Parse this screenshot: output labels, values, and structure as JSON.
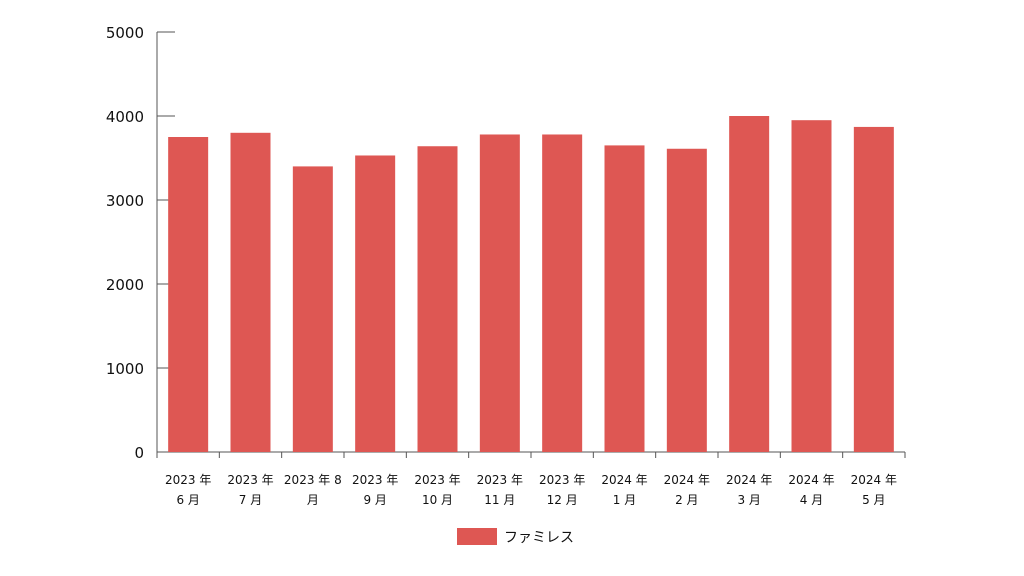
{
  "chart_data": {
    "type": "bar",
    "categories": [
      [
        "2023 年",
        "6 月"
      ],
      [
        "2023 年",
        "7 月"
      ],
      [
        "2023 年 8",
        "月"
      ],
      [
        "2023 年",
        "9 月"
      ],
      [
        "2023 年",
        "10 月"
      ],
      [
        "2023 年",
        "11 月"
      ],
      [
        "2023 年",
        "12 月"
      ],
      [
        "2024 年",
        "1 月"
      ],
      [
        "2024 年",
        "2 月"
      ],
      [
        "2024 年",
        "3 月"
      ],
      [
        "2024 年",
        "4 月"
      ],
      [
        "2024 年",
        "5 月"
      ]
    ],
    "series": [
      {
        "name": "ファミレス",
        "color": "#de5753",
        "values": [
          3750,
          3800,
          3400,
          3530,
          3640,
          3780,
          3780,
          3650,
          3610,
          4000,
          3950,
          3870
        ]
      }
    ],
    "ylim": [
      0,
      5000
    ],
    "yticks": [
      0,
      1000,
      2000,
      3000,
      4000,
      5000
    ],
    "grid": false,
    "legend_position": "bottom-center",
    "axis_color": "#555555"
  }
}
